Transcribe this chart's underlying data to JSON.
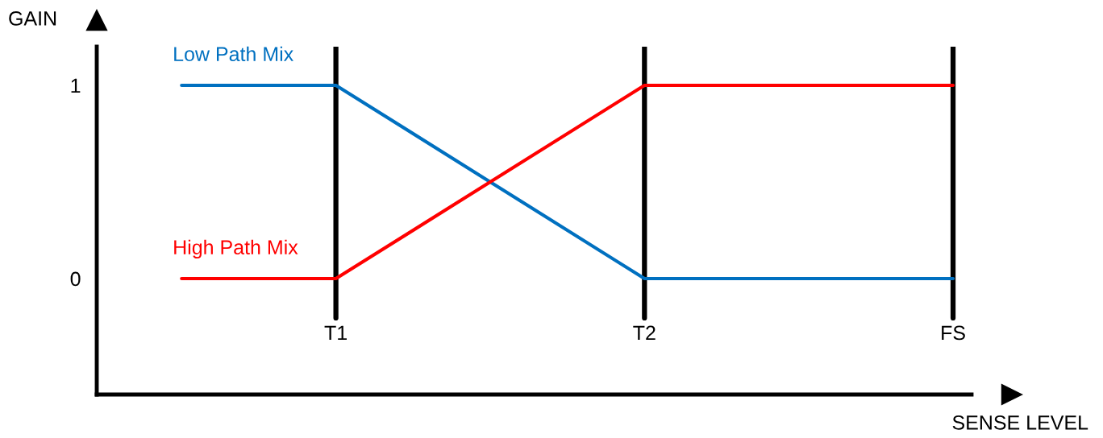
{
  "chart_data": {
    "type": "line",
    "xlabel": "SENSE LEVEL",
    "ylabel": "GAIN",
    "categories": [
      null,
      "T1",
      null,
      "T2",
      null,
      "FS"
    ],
    "series": [
      {
        "name": "Low Path Mix",
        "color": "#0070c0",
        "values": [
          1,
          1,
          0.5,
          0,
          0,
          0
        ]
      },
      {
        "name": "High Path Mix",
        "color": "#ff0000",
        "values": [
          0,
          0,
          0.5,
          1,
          1,
          1
        ]
      }
    ],
    "ylim": [
      -0.6,
      1.2
    ],
    "yticks": [
      0,
      1
    ],
    "ref_lines": [
      {
        "axis": "x",
        "value": "T1",
        "color": "#000000"
      },
      {
        "axis": "x",
        "value": "T2",
        "color": "#000000"
      },
      {
        "axis": "x",
        "value": "FS",
        "color": "#000000"
      }
    ],
    "grid": false,
    "legend": false,
    "marker": "none",
    "line_style": "solid"
  }
}
